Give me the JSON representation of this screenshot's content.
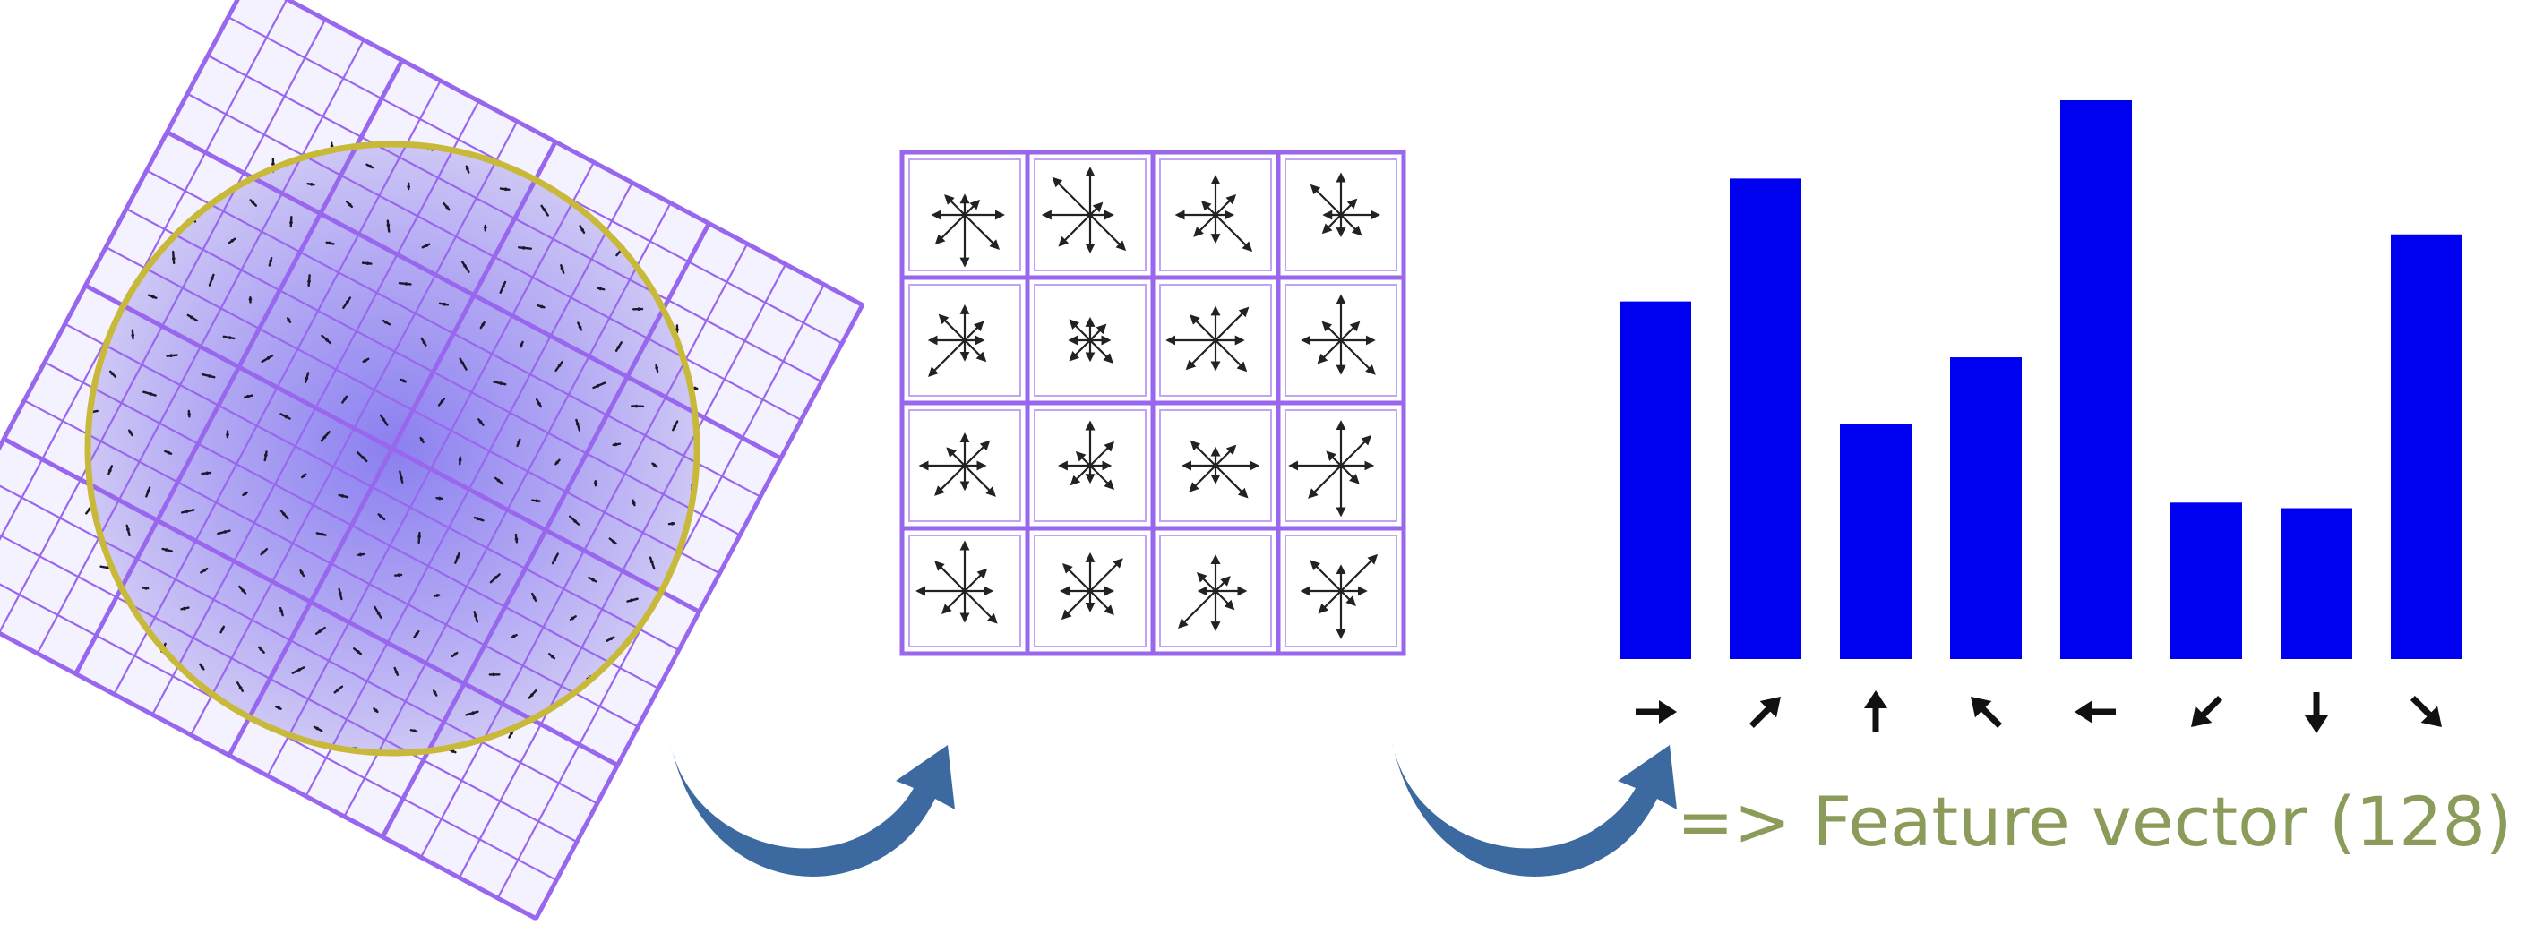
{
  "caption": "=> Feature vector (128)",
  "colors": {
    "grid": "#9966ee",
    "circle_fill": "#c9c2f4",
    "circle_stroke": "#c8b93a",
    "descriptor_border": "#9966ee",
    "bar": "#0000f0",
    "arrow": "#3c6aa0",
    "icon": "#111111",
    "caption": "#8a9b5a"
  },
  "histogram": {
    "bins": [
      {
        "direction": "right",
        "magnitude": 0.64
      },
      {
        "direction": "up-right",
        "magnitude": 0.86
      },
      {
        "direction": "up",
        "magnitude": 0.42
      },
      {
        "direction": "up-left",
        "magnitude": 0.54
      },
      {
        "direction": "left",
        "magnitude": 1.0
      },
      {
        "direction": "down-left",
        "magnitude": 0.28
      },
      {
        "direction": "down",
        "magnitude": 0.27
      },
      {
        "direction": "down-right",
        "magnitude": 0.76
      }
    ]
  },
  "transitions": [
    {
      "from": "gradient-grid",
      "to": "descriptor-grid"
    },
    {
      "from": "descriptor-grid",
      "to": "histogram"
    }
  ]
}
